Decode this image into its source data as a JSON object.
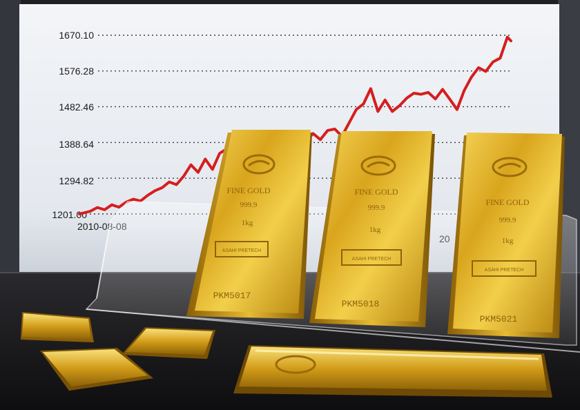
{
  "chart_data": {
    "type": "line",
    "y_ticks": [
      "1670.10",
      "1576.28",
      "1482.46",
      "1388.64",
      "1294.82",
      "1201.00"
    ],
    "x_ticks": [
      "2010-08-08",
      "20"
    ],
    "ylim": [
      1201.0,
      1670.1
    ],
    "grid": true,
    "series": [
      {
        "color": "#d41e1e",
        "points": [
          [
            0,
            1201
          ],
          [
            3,
            1208
          ],
          [
            5,
            1218
          ],
          [
            7,
            1212
          ],
          [
            9,
            1225
          ],
          [
            11,
            1219
          ],
          [
            13,
            1232
          ],
          [
            15,
            1240
          ],
          [
            17,
            1235
          ],
          [
            19,
            1250
          ],
          [
            21,
            1262
          ],
          [
            23,
            1270
          ],
          [
            25,
            1285
          ],
          [
            27,
            1278
          ],
          [
            29,
            1300
          ],
          [
            31,
            1330
          ],
          [
            33,
            1310
          ],
          [
            35,
            1345
          ],
          [
            37,
            1318
          ],
          [
            39,
            1360
          ],
          [
            41,
            1372
          ],
          [
            43,
            1330
          ],
          [
            45,
            1355
          ],
          [
            47,
            1342
          ],
          [
            49,
            1350
          ],
          [
            51,
            1380
          ],
          [
            53,
            1395
          ],
          [
            55,
            1370
          ],
          [
            57,
            1385
          ],
          [
            59,
            1400
          ],
          [
            61,
            1378
          ],
          [
            63,
            1392
          ],
          [
            65,
            1412
          ],
          [
            67,
            1396
          ],
          [
            69,
            1420
          ],
          [
            71,
            1424
          ],
          [
            73,
            1405
          ],
          [
            75,
            1440
          ],
          [
            77,
            1475
          ],
          [
            79,
            1490
          ],
          [
            81,
            1530
          ],
          [
            83,
            1470
          ],
          [
            85,
            1500
          ],
          [
            87,
            1470
          ],
          [
            89,
            1485
          ],
          [
            91,
            1505
          ],
          [
            93,
            1518
          ],
          [
            95,
            1515
          ],
          [
            97,
            1520
          ],
          [
            99,
            1503
          ],
          [
            101,
            1528
          ],
          [
            103,
            1502
          ],
          [
            105,
            1475
          ],
          [
            107,
            1525
          ],
          [
            109,
            1560
          ],
          [
            111,
            1585
          ],
          [
            113,
            1575
          ],
          [
            115,
            1600
          ],
          [
            117,
            1610
          ],
          [
            119,
            1665
          ],
          [
            120,
            1655
          ]
        ]
      }
    ]
  },
  "bars": [
    {
      "lines": [
        "FINE GOLD",
        "999.9",
        "1kg",
        "ASAHI PRETECH",
        "PKM5017"
      ]
    },
    {
      "lines": [
        "FINE GOLD",
        "999.9",
        "1kg",
        "ASAHI PRETECH",
        "PKM5018"
      ]
    },
    {
      "lines": [
        "FINE GOLD",
        "999.9",
        "1kg",
        "ASAHI PRETECH",
        "PKM5021"
      ]
    }
  ]
}
